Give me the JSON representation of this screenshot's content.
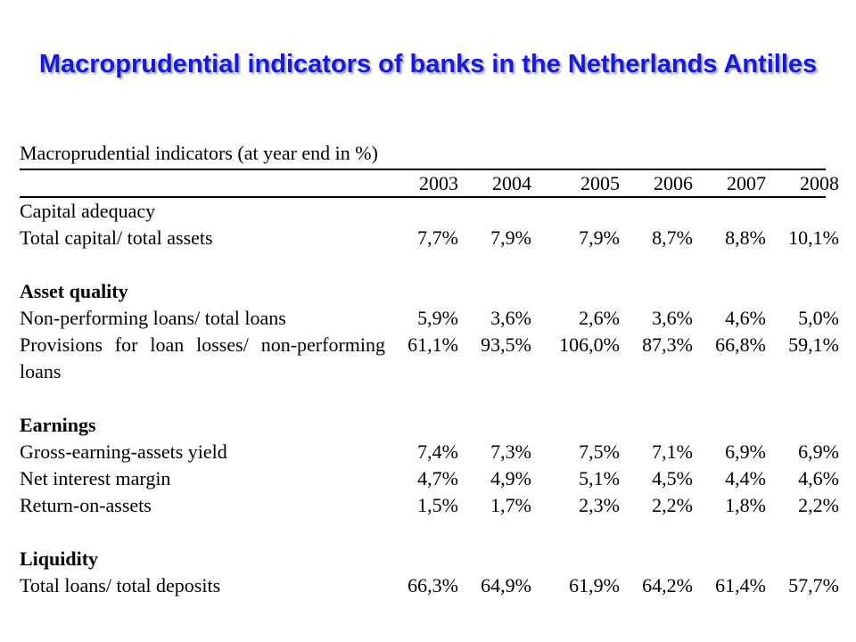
{
  "title": "Macroprudential indicators of banks in the Netherlands Antilles",
  "table": {
    "caption": "Macroprudential indicators (at year end in %)",
    "years": [
      "2003",
      "2004",
      "2005",
      "2006",
      "2007",
      "2008"
    ],
    "sections": [
      {
        "heading": "Capital adequacy",
        "rows": [
          {
            "label": "Total capital/ total assets",
            "values": [
              "7,7%",
              "7,9%",
              "7,9%",
              "8,7%",
              "8,8%",
              "10,1%"
            ]
          }
        ]
      },
      {
        "heading": "Asset quality",
        "rows": [
          {
            "label": "Non-performing loans/ total loans",
            "values": [
              "5,9%",
              "3,6%",
              "2,6%",
              "3,6%",
              "4,6%",
              "5,0%"
            ]
          },
          {
            "label": "Provisions for loan losses/ non-performing loans",
            "values": [
              "61,1%",
              "93,5%",
              "106,0%",
              "87,3%",
              "66,8%",
              "59,1%"
            ]
          }
        ]
      },
      {
        "heading": "Earnings",
        "rows": [
          {
            "label": "Gross-earning-assets yield",
            "values": [
              "7,4%",
              "7,3%",
              "7,5%",
              "7,1%",
              "6,9%",
              "6,9%"
            ]
          },
          {
            "label": "Net interest margin",
            "values": [
              "4,7%",
              "4,9%",
              "5,1%",
              "4,5%",
              "4,4%",
              "4,6%"
            ]
          },
          {
            "label": "Return-on-assets",
            "values": [
              "1,5%",
              "1,7%",
              "2,3%",
              "2,2%",
              "1,8%",
              "2,2%"
            ]
          }
        ]
      },
      {
        "heading": "Liquidity",
        "rows": [
          {
            "label": "Total loans/ total deposits",
            "values": [
              "66,3%",
              "64,9%",
              "61,9%",
              "64,2%",
              "61,4%",
              "57,7%"
            ]
          }
        ]
      }
    ]
  }
}
